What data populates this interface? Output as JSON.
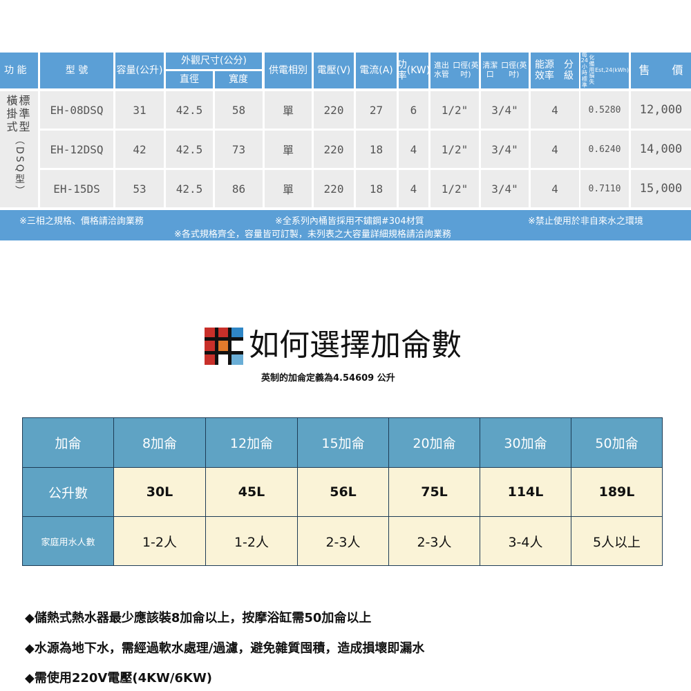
{
  "spec_table": {
    "header": {
      "function": "功 能",
      "model": "型 號",
      "capacity": [
        "容量",
        "(公升)"
      ],
      "dimensions": "外觀尺寸(公分)",
      "diameter": "直徑",
      "width": "寬度",
      "phase": [
        "供電",
        "相別"
      ],
      "voltage": [
        "電壓",
        "(V)"
      ],
      "current": [
        "電流",
        "(A)"
      ],
      "power": [
        "功率",
        "(KW)"
      ],
      "pipe": [
        "進出水管",
        "口徑(英吋)"
      ],
      "clean": [
        "清潔口",
        "口徑(英吋)"
      ],
      "efficiency": [
        "能源效率",
        "分　級"
      ],
      "standby_loss": [
        "每24小時標準",
        "化備用損失",
        "Est,24(kWh)"
      ],
      "price": "售　　價"
    },
    "function_label": {
      "lines": [
        "橫標",
        "掛準",
        "式型"
      ],
      "vertical": "（DSQ型）"
    },
    "rows": [
      [
        "EH-08DSQ",
        "31",
        "42.5",
        "58",
        "單",
        "220",
        "27",
        "6",
        "1/2\"",
        "3/4\"",
        "4",
        "0.5280",
        "12,000"
      ],
      [
        "EH-12DSQ",
        "42",
        "42.5",
        "73",
        "單",
        "220",
        "18",
        "4",
        "1/2\"",
        "3/4\"",
        "4",
        "0.6240",
        "14,000"
      ],
      [
        "EH-15DS",
        "53",
        "42.5",
        "86",
        "單",
        "220",
        "18",
        "4",
        "1/2\"",
        "3/4\"",
        "4",
        "0.7110",
        "15,000"
      ]
    ],
    "notes": {
      "note1": "※三相之規格、價格請洽詢業務",
      "note2": "※全系列內桶皆採用不鏽鋼#304材質",
      "note3": "※禁止使用於非自來水之環境",
      "note4": "※各式規格齊全，容量皆可訂製，未列表之大容量詳細規格請洽詢業務"
    }
  },
  "gallon_section": {
    "title": "如何選擇加侖數",
    "subtitle": "英制的加侖定義為4.54609 公升",
    "logo_colors": [
      "#c8302a",
      "#e07a2c",
      "#2f86c6",
      "#6aaed6"
    ],
    "table": {
      "row_headers": [
        "加侖",
        "公升數",
        "家庭用水人數"
      ],
      "columns": [
        "8加侖",
        "12加侖",
        "15加侖",
        "20加侖",
        "30加侖",
        "50加侖"
      ],
      "liters": [
        "30L",
        "45L",
        "56L",
        "75L",
        "114L",
        "189L"
      ],
      "people": [
        "1-2人",
        "1-2人",
        "2-3人",
        "2-3人",
        "3-4人",
        "5人以上"
      ]
    }
  },
  "bullets": [
    "◆儲熱式熱水器最少應該裝8加侖以上，按摩浴缸需50加侖以上",
    "◆水源為地下水，需經過軟水處理/過濾，避免雜質囤積，造成損壞即漏水",
    "◆需使用220V電壓(4KW/6KW)"
  ]
}
